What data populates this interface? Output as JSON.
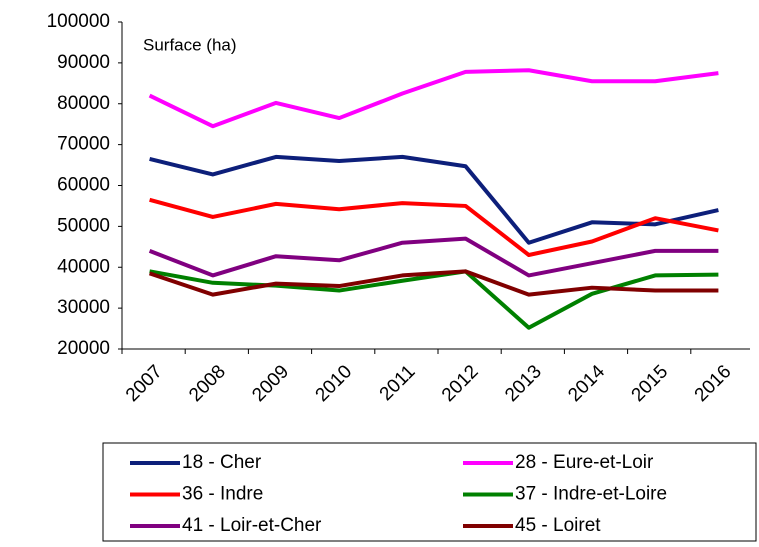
{
  "chart_data": {
    "type": "line",
    "annotation": "Surface (ha)",
    "categories": [
      "2007",
      "2008",
      "2009",
      "2010",
      "2011",
      "2012",
      "2013",
      "2014",
      "2015",
      "2016"
    ],
    "series": [
      {
        "name": "18 - Cher",
        "color": "#0d1f7a",
        "values": [
          66500,
          62700,
          67000,
          66000,
          67000,
          64700,
          46000,
          51000,
          50500,
          54000
        ]
      },
      {
        "name": "28 - Eure-et-Loir",
        "color": "#ff00ff",
        "values": [
          82000,
          74500,
          80200,
          76500,
          82500,
          87800,
          88200,
          85500,
          85500,
          87500
        ]
      },
      {
        "name": "36 - Indre",
        "color": "#ff0000",
        "values": [
          56500,
          52300,
          55500,
          54200,
          55700,
          55000,
          43000,
          46300,
          52000,
          49000
        ]
      },
      {
        "name": "37 - Indre-et-Loire",
        "color": "#008000",
        "values": [
          39000,
          36200,
          35500,
          34300,
          36700,
          39000,
          25200,
          33500,
          38000,
          38200
        ]
      },
      {
        "name": "41 - Loir-et-Cher",
        "color": "#800080",
        "values": [
          44000,
          38000,
          42700,
          41700,
          46000,
          47000,
          38000,
          41000,
          44000,
          44000
        ]
      },
      {
        "name": "45 - Loiret",
        "color": "#800000",
        "values": [
          38500,
          33300,
          36000,
          35400,
          38000,
          39000,
          33300,
          35000,
          34300,
          34300
        ]
      }
    ],
    "ylim": [
      20000,
      100000
    ],
    "yticks": [
      20000,
      30000,
      40000,
      50000,
      60000,
      70000,
      80000,
      90000,
      100000
    ],
    "grid": false,
    "legend": "bottom"
  }
}
